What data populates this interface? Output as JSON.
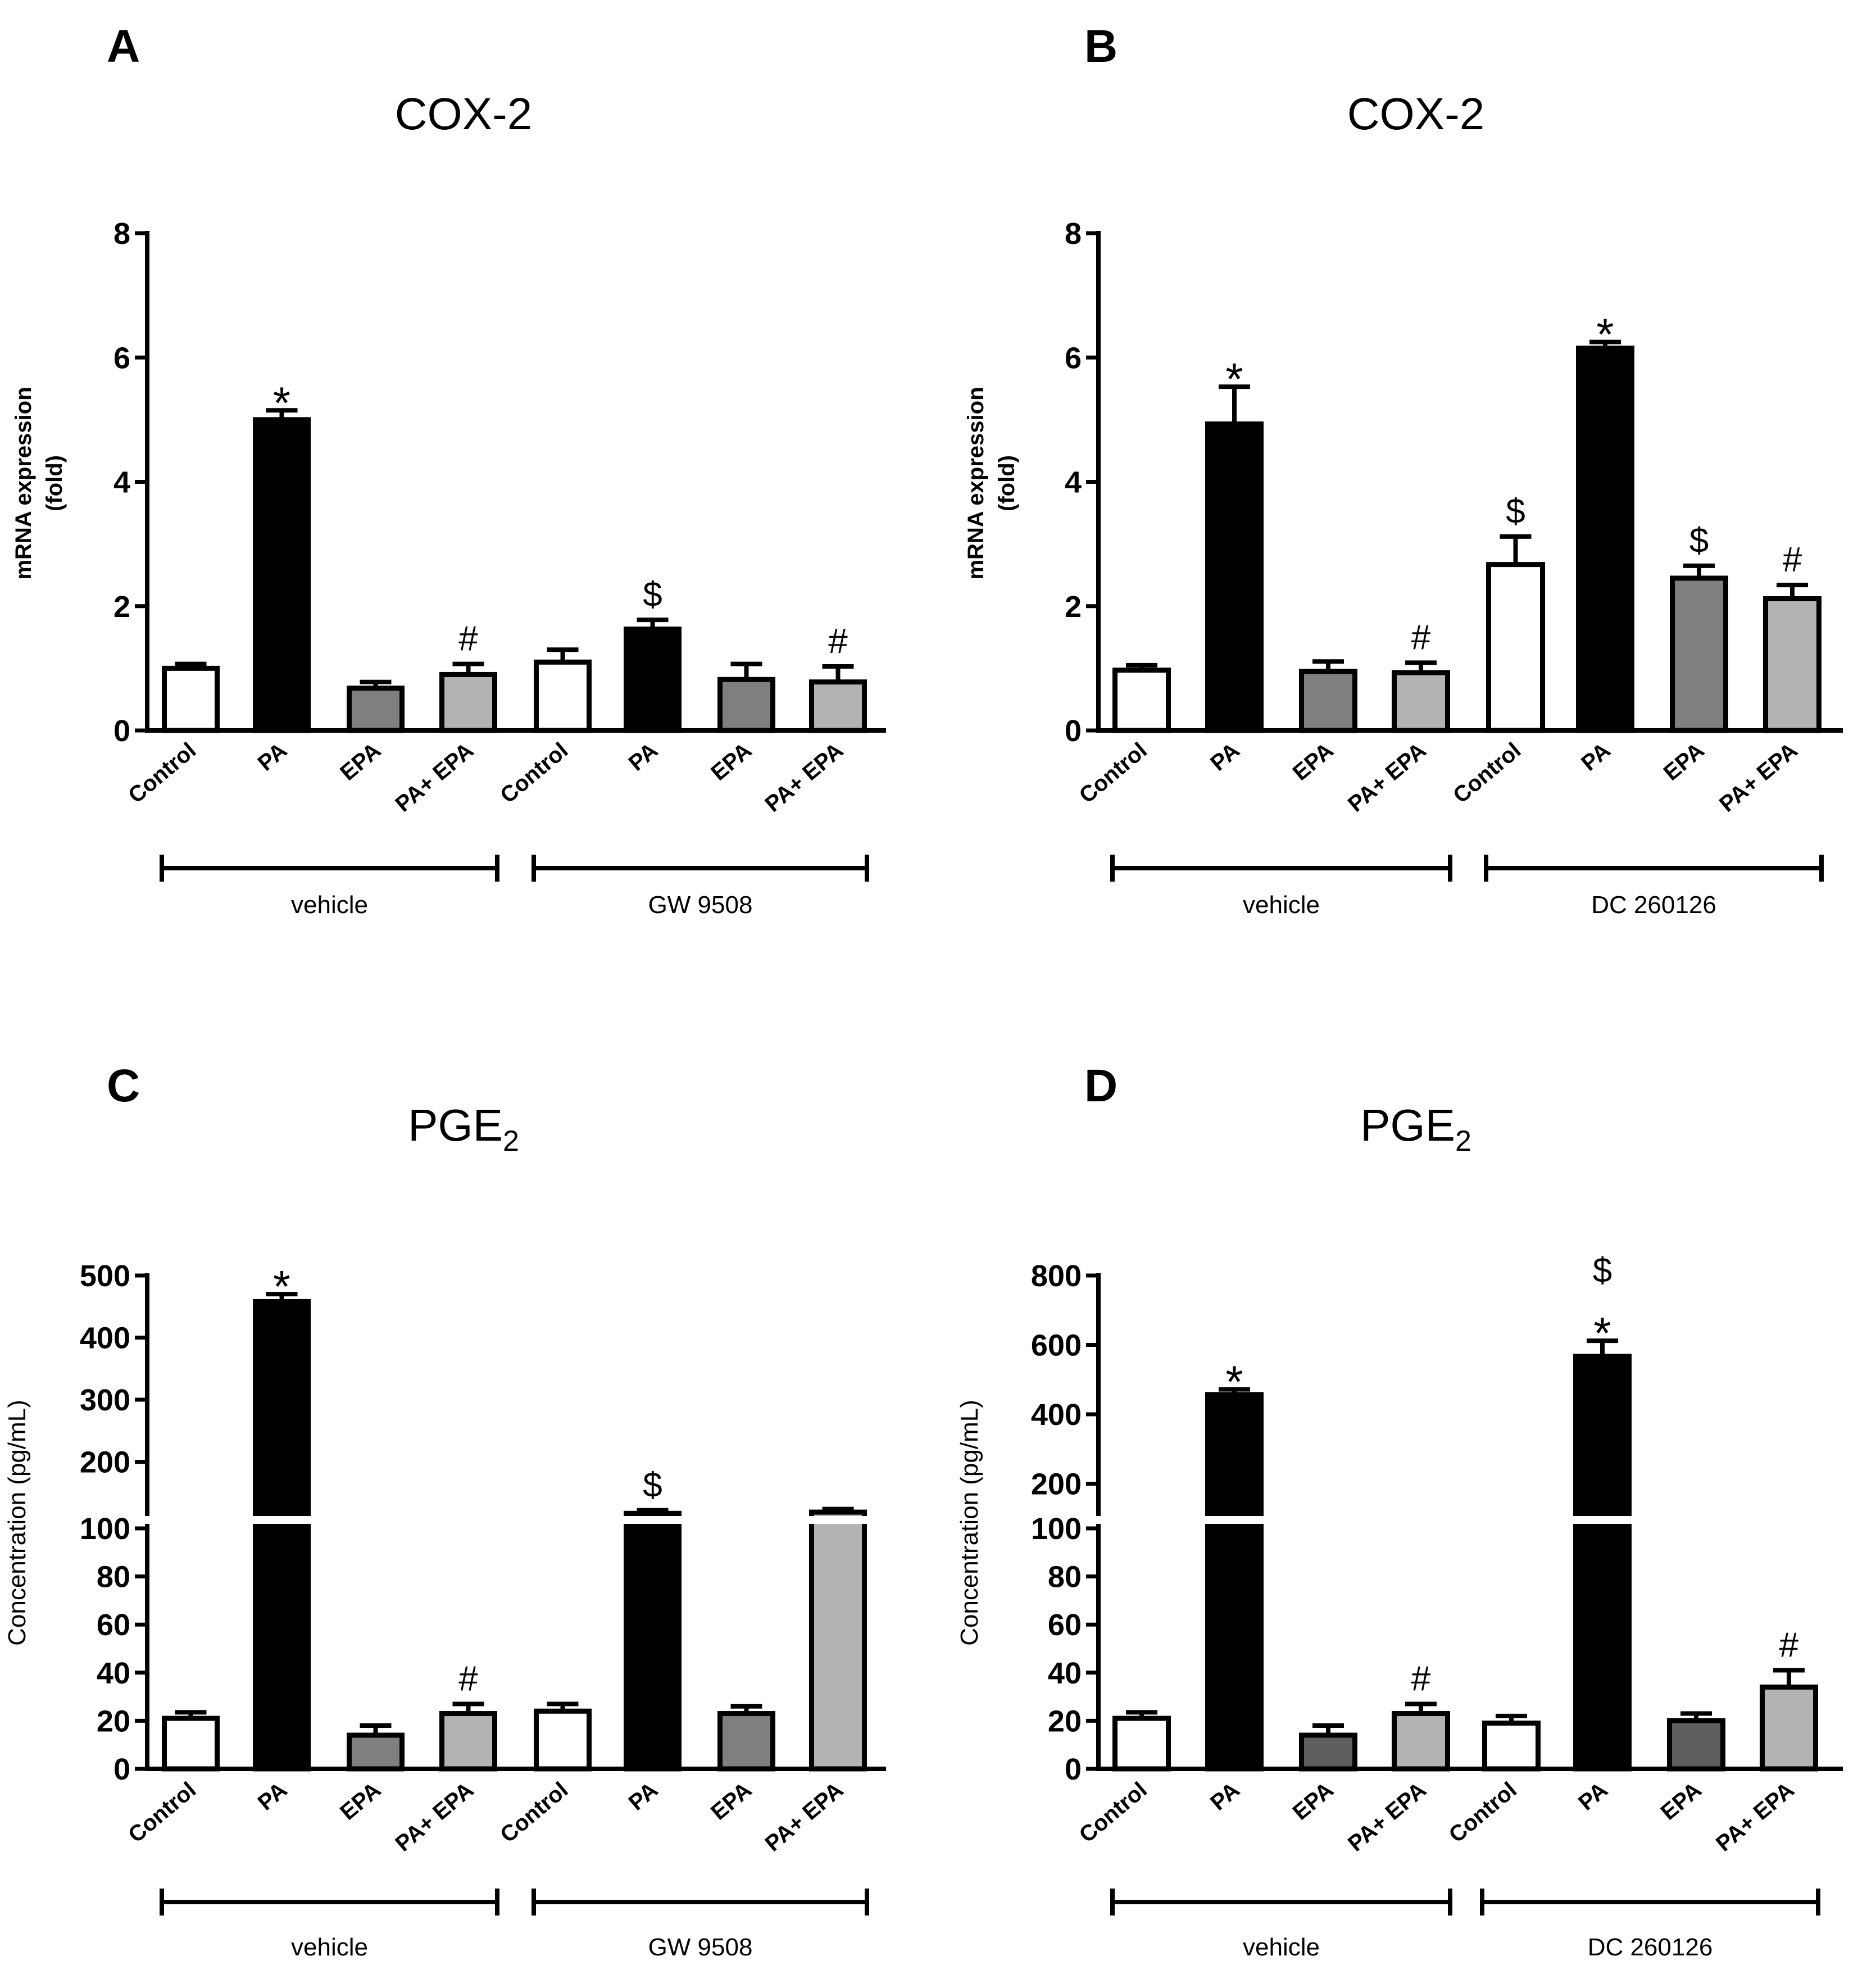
{
  "chart_data": [
    {
      "panel": "A",
      "type": "bar",
      "title": "COX-2",
      "ylabel": [
        "mRNA expression",
        "(fold)"
      ],
      "ylim": [
        0,
        8
      ],
      "yticks": [
        0,
        2,
        4,
        6,
        8
      ],
      "categories": [
        "Control",
        "PA",
        "EPA",
        "PA+ EPA",
        "Control",
        "PA",
        "EPA",
        "PA+ EPA"
      ],
      "values": [
        1.0,
        5.0,
        0.68,
        0.9,
        1.1,
        1.63,
        0.82,
        0.78
      ],
      "errors": [
        0.07,
        0.15,
        0.1,
        0.17,
        0.2,
        0.15,
        0.25,
        0.25
      ],
      "fills": [
        "#ffffff",
        "#000000",
        "#7f7f7f",
        "#b3b3b3",
        "#ffffff",
        "#000000",
        "#7f7f7f",
        "#b3b3b3"
      ],
      "markers": [
        "",
        "*",
        "",
        "#",
        "",
        "$",
        "",
        "#"
      ],
      "groups": [
        {
          "label": "vehicle",
          "from": 0,
          "to": 3
        },
        {
          "label": "GW 9508",
          "from": 4,
          "to": 7
        }
      ]
    },
    {
      "panel": "B",
      "type": "bar",
      "title": "COX-2",
      "ylabel": [
        "mRNA expression",
        "(fold)"
      ],
      "ylim": [
        0,
        8
      ],
      "yticks": [
        0,
        2,
        4,
        6,
        8
      ],
      "categories": [
        "Control",
        "PA",
        "EPA",
        "PA+ EPA",
        "Control",
        "PA",
        "EPA",
        "PA+ EPA"
      ],
      "values": [
        0.97,
        4.93,
        0.95,
        0.93,
        2.67,
        6.15,
        2.45,
        2.12
      ],
      "errors": [
        0.08,
        0.6,
        0.16,
        0.16,
        0.45,
        0.1,
        0.2,
        0.22
      ],
      "fills": [
        "#ffffff",
        "#000000",
        "#7f7f7f",
        "#b3b3b3",
        "#ffffff",
        "#000000",
        "#7f7f7f",
        "#b3b3b3"
      ],
      "markers": [
        "",
        "*",
        "",
        "#",
        "$",
        "*",
        "$",
        "#"
      ],
      "groups": [
        {
          "label": "vehicle",
          "from": 0,
          "to": 3
        },
        {
          "label": "DC 260126",
          "from": 4,
          "to": 7
        }
      ]
    },
    {
      "panel": "C",
      "type": "bar",
      "title": "PGE",
      "title_sub": "2",
      "ylabel": [
        "Concentration (pg/mL)"
      ],
      "broken_axis": {
        "lower": [
          0,
          100
        ],
        "upper": [
          120,
          500
        ]
      },
      "yticks_lower": [
        0,
        20,
        40,
        60,
        80,
        100
      ],
      "yticks_upper": [
        200,
        300,
        400,
        500
      ],
      "categories": [
        "Control",
        "PA",
        "EPA",
        "PA+ EPA",
        "Control",
        "PA",
        "EPA",
        "PA+ EPA"
      ],
      "values": [
        21,
        458,
        14,
        23,
        24,
        117,
        23,
        119
      ],
      "errors": [
        2.5,
        12,
        4,
        4,
        3,
        5,
        3,
        5
      ],
      "fills": [
        "#ffffff",
        "#000000",
        "#7f7f7f",
        "#b3b3b3",
        "#ffffff",
        "#000000",
        "#7f7f7f",
        "#b3b3b3"
      ],
      "markers": [
        "",
        "*",
        "",
        "#",
        "",
        "$",
        "",
        ""
      ],
      "groups": [
        {
          "label": "vehicle",
          "from": 0,
          "to": 3
        },
        {
          "label": "GW 9508",
          "from": 4,
          "to": 7
        }
      ]
    },
    {
      "panel": "D",
      "type": "bar",
      "title": "PGE",
      "title_sub": "2",
      "ylabel": [
        "Concentration (pg/mL)"
      ],
      "broken_axis": {
        "lower": [
          0,
          100
        ],
        "upper": [
          120,
          800
        ]
      },
      "yticks_lower": [
        0,
        20,
        40,
        60,
        80,
        100
      ],
      "yticks_upper": [
        200,
        400,
        600,
        800
      ],
      "categories": [
        "Control",
        "PA",
        "EPA",
        "PA+ EPA",
        "Control",
        "PA",
        "EPA",
        "PA+ EPA"
      ],
      "values": [
        21,
        457,
        14,
        23,
        19,
        567,
        20,
        34
      ],
      "errors": [
        2.5,
        15,
        4,
        4,
        3,
        45,
        3,
        7
      ],
      "fills": [
        "#ffffff",
        "#000000",
        "#5f5f5f",
        "#b3b3b3",
        "#ffffff",
        "#000000",
        "#5f5f5f",
        "#b3b3b3"
      ],
      "markers": [
        "",
        "*",
        "",
        "#",
        "",
        "$*",
        "",
        "#"
      ],
      "groups": [
        {
          "label": "vehicle",
          "from": 0,
          "to": 3
        },
        {
          "label": "DC 260126",
          "from": 4,
          "to": 7
        }
      ]
    }
  ]
}
